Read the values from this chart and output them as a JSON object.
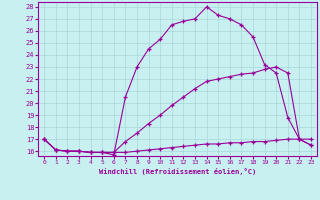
{
  "xlabel": "Windchill (Refroidissement éolien,°C)",
  "bg_color": "#c8f0f0",
  "line_color": "#990099",
  "grid_color": "#a8d8d8",
  "xlim": [
    -0.5,
    23.5
  ],
  "ylim": [
    15.6,
    28.4
  ],
  "yticks": [
    16,
    17,
    18,
    19,
    20,
    21,
    22,
    23,
    24,
    25,
    26,
    27,
    28
  ],
  "xticks": [
    0,
    1,
    2,
    3,
    4,
    5,
    6,
    7,
    8,
    9,
    10,
    11,
    12,
    13,
    14,
    15,
    16,
    17,
    18,
    19,
    20,
    21,
    22,
    23
  ],
  "line1_x": [
    0,
    1,
    2,
    3,
    4,
    5,
    6,
    7,
    8,
    9,
    10,
    11,
    12,
    13,
    14,
    15,
    16,
    17,
    18,
    19,
    20,
    21,
    22,
    23
  ],
  "line1_y": [
    17,
    16.1,
    16.0,
    16.0,
    15.9,
    15.9,
    15.7,
    20.5,
    23.0,
    24.5,
    25.3,
    26.5,
    26.8,
    27.0,
    28.0,
    27.3,
    27.0,
    26.5,
    25.5,
    23.2,
    22.5,
    18.8,
    17.0,
    16.5
  ],
  "line2_x": [
    0,
    1,
    2,
    3,
    4,
    5,
    6,
    7,
    8,
    9,
    10,
    11,
    12,
    13,
    14,
    15,
    16,
    17,
    18,
    19,
    20,
    21,
    22,
    23
  ],
  "line2_y": [
    17,
    16.1,
    16.0,
    16.0,
    15.9,
    15.9,
    15.9,
    16.8,
    17.5,
    18.3,
    19.0,
    19.8,
    20.5,
    21.2,
    21.8,
    22.0,
    22.2,
    22.4,
    22.5,
    22.8,
    23.0,
    22.5,
    17.0,
    16.5
  ],
  "line3_x": [
    0,
    1,
    2,
    3,
    4,
    5,
    6,
    7,
    8,
    9,
    10,
    11,
    12,
    13,
    14,
    15,
    16,
    17,
    18,
    19,
    20,
    21,
    22,
    23
  ],
  "line3_y": [
    17,
    16.1,
    16.0,
    16.0,
    15.9,
    15.9,
    15.9,
    15.9,
    16.0,
    16.1,
    16.2,
    16.3,
    16.4,
    16.5,
    16.6,
    16.6,
    16.7,
    16.7,
    16.8,
    16.8,
    16.9,
    17.0,
    17.0,
    17.0
  ]
}
